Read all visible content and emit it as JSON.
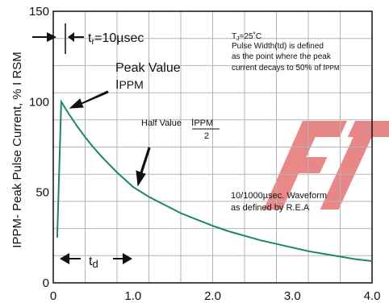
{
  "colors": {
    "curve": "#1a8a5a",
    "grid": "#b4b4b4",
    "watermark": "#e57373"
  },
  "chart_data": {
    "type": "line",
    "xlim": [
      0,
      4
    ],
    "ylim": [
      0,
      150
    ],
    "xticks": [
      "0",
      "1.0",
      "2.0",
      "3.0",
      "4.0"
    ],
    "yticks": [
      "0",
      "50",
      "100",
      "150"
    ],
    "ylabel": "IPPM- Peak Pulse Current, % I RSM",
    "grid": true,
    "series": [
      {
        "x": [
          0.05,
          0.1,
          0.2,
          0.3,
          0.4,
          0.5,
          0.6,
          0.7,
          0.8,
          0.9,
          1.0,
          1.2,
          1.4,
          1.6,
          1.8,
          2.0,
          2.2,
          2.4,
          2.6,
          2.8,
          3.0,
          3.2,
          3.4,
          3.6,
          3.8,
          4.0
        ],
        "y": [
          25,
          100,
          93,
          86.5,
          80.5,
          75,
          70,
          65.5,
          61,
          57,
          53,
          47.5,
          43,
          38.5,
          35,
          31.5,
          28.5,
          26,
          23.5,
          21.5,
          19.5,
          17.5,
          16,
          14.5,
          13,
          12
        ]
      }
    ],
    "annotations": {
      "tr_label": "t",
      "tr_sub": "r",
      "tr_value": "=10µsec",
      "tj_label": "T",
      "tj_sub": "J",
      "tj_value": "=25˚C",
      "pulse_line1": "Pulse Width(td) is defined",
      "pulse_line2": "as the point where the peak",
      "pulse_line3": "current decays to 50% of I",
      "pulse_line3_sub": "PPM",
      "peak_label": "Peak Value",
      "peak_sym": "I",
      "peak_sub": "PPM",
      "half_label": "Half Value",
      "half_sym": "I",
      "half_sub": "PPM",
      "half_den": "2",
      "waveform_line1": "10/1000µsec. Waveform",
      "waveform_line2": "as defined by R.E.A",
      "td_label": "t",
      "td_sub": "d"
    }
  }
}
